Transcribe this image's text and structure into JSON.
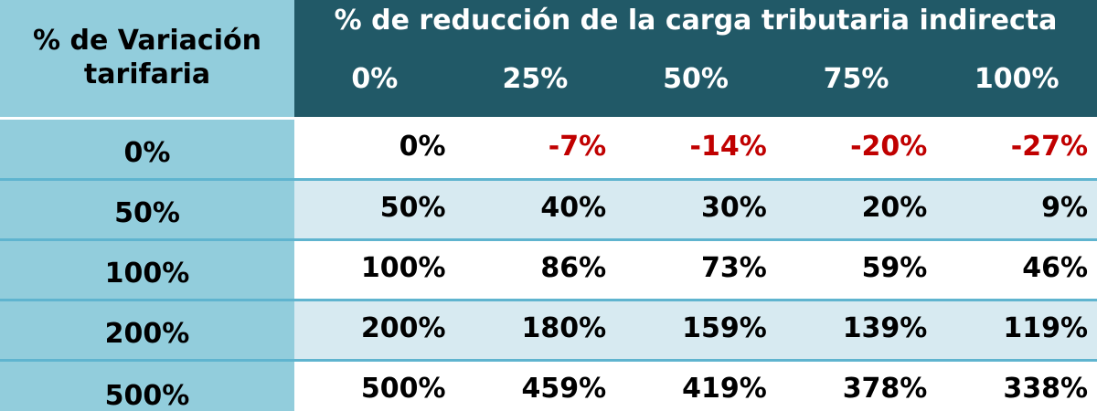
{
  "table": {
    "row_header_label": "% de Variación tarifaria",
    "col_group_label": "% de reducción de la carga tributaria indirecta",
    "columns": [
      "0%",
      "25%",
      "50%",
      "75%",
      "100%"
    ],
    "rows": [
      {
        "label": "0%",
        "values": [
          "0%",
          "-7%",
          "-14%",
          "-20%",
          "-27%"
        ]
      },
      {
        "label": "50%",
        "values": [
          "50%",
          "40%",
          "30%",
          "20%",
          "9%"
        ]
      },
      {
        "label": "100%",
        "values": [
          "100%",
          "86%",
          "73%",
          "59%",
          "46%"
        ]
      },
      {
        "label": "200%",
        "values": [
          "200%",
          "180%",
          "159%",
          "139%",
          "119%"
        ]
      },
      {
        "label": "500%",
        "values": [
          "500%",
          "459%",
          "419%",
          "378%",
          "338%"
        ]
      }
    ]
  },
  "chart_data": {
    "type": "table",
    "row_axis_label": "% de Variación tarifaria",
    "column_axis_label": "% de reducción de la carga tributaria indirecta",
    "columns": [
      "0%",
      "25%",
      "50%",
      "75%",
      "100%"
    ],
    "rows": [
      "0%",
      "50%",
      "100%",
      "200%",
      "500%"
    ],
    "values": [
      [
        0,
        -7,
        -14,
        -20,
        -27
      ],
      [
        50,
        40,
        30,
        20,
        9
      ],
      [
        100,
        86,
        73,
        59,
        46
      ],
      [
        200,
        180,
        159,
        139,
        119
      ],
      [
        500,
        459,
        419,
        378,
        338
      ]
    ],
    "unit": "%"
  },
  "colors": {
    "header_dark": "#215967",
    "row_header": "#92cddc",
    "stripe": "#d7eaf1",
    "negative": "#c00000"
  }
}
